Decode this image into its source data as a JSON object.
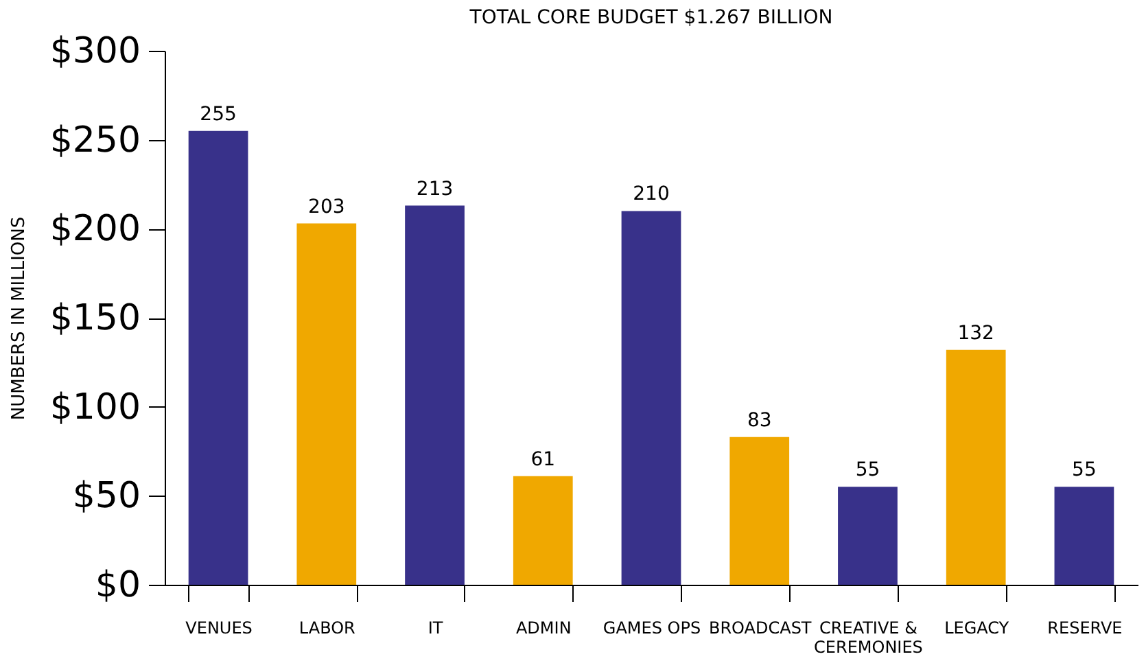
{
  "chart_data": {
    "type": "bar",
    "title": "TOTAL CORE BUDGET $1.267 BILLION",
    "ylabel": "NUMBERS IN MILLIONS",
    "categories": [
      "VENUES",
      "LABOR",
      "IT",
      "ADMIN",
      "GAMES OPS",
      "BROADCAST",
      "CREATIVE & CEREMONIES",
      "LEGACY",
      "RESERVE"
    ],
    "values": [
      255,
      203,
      213,
      61,
      210,
      83,
      55,
      132,
      55
    ],
    "colors": [
      "#38318a",
      "#f0a800",
      "#38318a",
      "#f0a800",
      "#38318a",
      "#f0a800",
      "#38318a",
      "#f0a800",
      "#38318a"
    ],
    "ylim": [
      0,
      300
    ],
    "yticks": [
      {
        "value": 0,
        "label": "$0"
      },
      {
        "value": 50,
        "label": "$50"
      },
      {
        "value": 100,
        "label": "$100"
      },
      {
        "value": 150,
        "label": "$150"
      },
      {
        "value": 200,
        "label": "$200"
      },
      {
        "value": 250,
        "label": "$250"
      },
      {
        "value": 300,
        "label": "$300"
      }
    ],
    "data_labels": true
  }
}
